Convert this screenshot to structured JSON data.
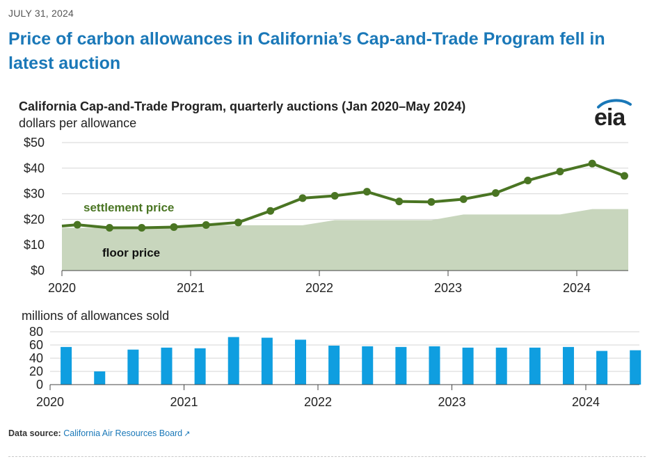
{
  "date": "JULY 31, 2024",
  "headline": "Price of carbon allowances in California’s Cap-and-Trade Program fell in latest auction",
  "logo_text": "eia",
  "source": {
    "label": "Data source:",
    "link_text": "California Air Resources Board",
    "icon": "external-link-icon"
  },
  "colors": {
    "settlement": "#4a7523",
    "floor_fill": "#c8d6bd",
    "bars": "#0f9ee0",
    "headline": "#1a78b8"
  },
  "chart_data": [
    {
      "type": "line",
      "title": "California Cap-and-Trade Program, quarterly auctions (Jan 2020–May 2024)",
      "ylabel": "dollars per allowance",
      "ylim": [
        0,
        50
      ],
      "yticks": [
        0,
        10,
        20,
        30,
        40,
        50
      ],
      "ytick_labels": [
        "$0",
        "$10",
        "$20",
        "$30",
        "$40",
        "$50"
      ],
      "xlim": [
        2020.0,
        2024.4
      ],
      "xticks": [
        2020,
        2021,
        2022,
        2023,
        2024
      ],
      "xtick_labels": [
        "2020",
        "2021",
        "2022",
        "2023",
        "2024"
      ],
      "series": [
        {
          "name": "settlement price",
          "kind": "line",
          "x": [
            2020.12,
            2020.37,
            2020.62,
            2020.87,
            2021.12,
            2021.37,
            2021.62,
            2021.87,
            2022.12,
            2022.37,
            2022.62,
            2022.87,
            2023.12,
            2023.37,
            2023.62,
            2023.87,
            2024.12,
            2024.37
          ],
          "values": [
            17.9,
            16.7,
            16.7,
            17.0,
            17.8,
            18.8,
            23.3,
            28.3,
            29.2,
            30.8,
            27.0,
            26.8,
            27.9,
            30.3,
            35.2,
            38.7,
            41.8,
            37.0
          ]
        },
        {
          "name": "floor price",
          "kind": "step-area",
          "x": [
            2020.0,
            2020.12,
            2020.87,
            2021.12,
            2021.87,
            2022.12,
            2022.87,
            2023.12,
            2023.87,
            2024.12,
            2024.4
          ],
          "values": [
            16.7,
            16.7,
            16.7,
            17.7,
            17.7,
            19.7,
            19.7,
            21.9,
            21.9,
            24.0,
            24.0
          ]
        }
      ],
      "annotations": [
        {
          "text": "settlement price",
          "series": "settlement price"
        },
        {
          "text": "floor price",
          "series": "floor price"
        }
      ]
    },
    {
      "type": "bar",
      "title": "millions of allowances sold",
      "ylim": [
        0,
        80
      ],
      "yticks": [
        0,
        20,
        40,
        60,
        80
      ],
      "ytick_labels": [
        "0",
        "20",
        "40",
        "60",
        "80"
      ],
      "xlim": [
        2020.0,
        2024.4
      ],
      "xticks": [
        2020,
        2021,
        2022,
        2023,
        2024
      ],
      "xtick_labels": [
        "2020",
        "2021",
        "2022",
        "2023",
        "2024"
      ],
      "x": [
        2020.12,
        2020.37,
        2020.62,
        2020.87,
        2021.12,
        2021.37,
        2021.62,
        2021.87,
        2022.12,
        2022.37,
        2022.62,
        2022.87,
        2023.12,
        2023.37,
        2023.62,
        2023.87,
        2024.12,
        2024.37
      ],
      "values": [
        57,
        20,
        53,
        56,
        55,
        72,
        71,
        68,
        59,
        58,
        57,
        58,
        56,
        56,
        56,
        57,
        51,
        52
      ]
    }
  ]
}
